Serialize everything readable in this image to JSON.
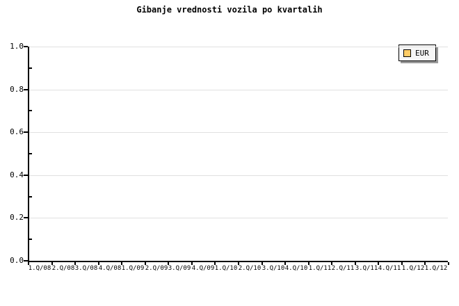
{
  "chart_data": {
    "type": "line",
    "title": "Gibanje vrednosti vozila po kvartalih",
    "x_categories": [
      "1.Q/08",
      "2.Q/08",
      "3.Q/08",
      "4.Q/08",
      "1.Q/09",
      "2.Q/09",
      "3.Q/09",
      "4.Q/09",
      "1.Q/10",
      "2.Q/10",
      "3.Q/10",
      "4.Q/10",
      "1.Q/11",
      "2.Q/11",
      "3.Q/11",
      "4.Q/11",
      "1.Q/12",
      "1.Q/12"
    ],
    "xlabel": "",
    "ylabel": "",
    "y_axis": {
      "range": [
        0.0,
        1.0
      ],
      "major_tick_labels": [
        "1.0",
        "0.8",
        "0.6",
        "0.4",
        "0.2",
        "0.0"
      ],
      "major_tick_values": [
        1.0,
        0.8,
        0.6,
        0.4,
        0.2,
        0.0
      ],
      "minor_tick_values": [
        0.9,
        0.7,
        0.5,
        0.3,
        0.1
      ]
    },
    "grid": "horizontal-major",
    "legend_position": "top-right",
    "series": [
      {
        "name": "EUR",
        "color": "#FFCC66",
        "values": []
      }
    ],
    "colors": {
      "background": "#FFFFFF",
      "axis": "#000000",
      "grid": "#E0E0E0",
      "text": "#000000",
      "legend_bg": "#F6F6F6",
      "legend_border": "#000000",
      "legend_shadow": "#999999",
      "swatch_fill": "#FFCC66",
      "swatch_border": "#000000"
    }
  }
}
